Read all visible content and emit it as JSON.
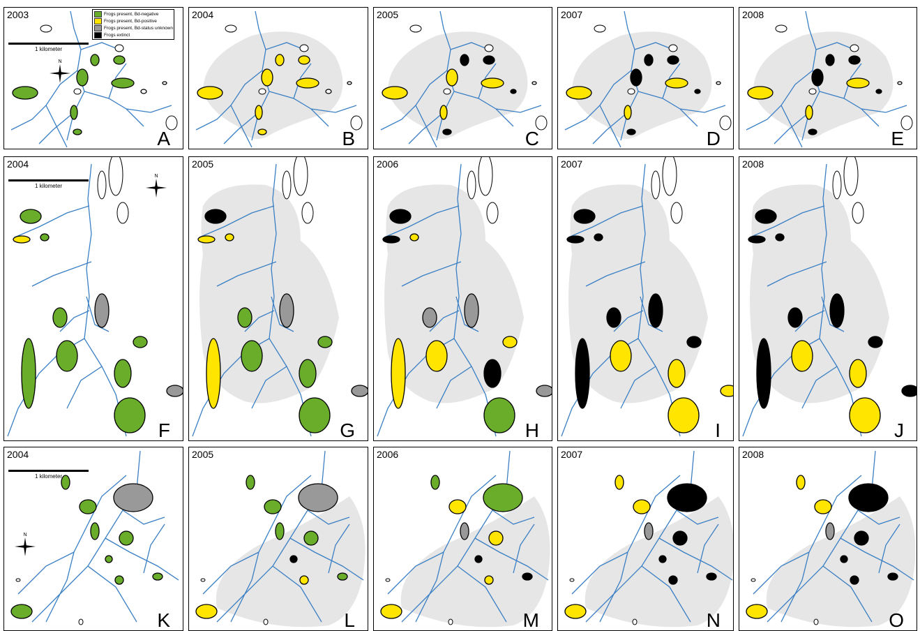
{
  "legend": {
    "items": [
      {
        "label": "Frogs present, Bd-negative",
        "color": "#6aad2a"
      },
      {
        "label": "Frogs present, Bd-positive",
        "color": "#ffe500"
      },
      {
        "label": "Frogs present, Bd-status unknown",
        "color": "#999999"
      },
      {
        "label": "Frogs extinct",
        "color": "#000000"
      }
    ]
  },
  "scale_label": "1 kilometer",
  "compass_label": "N",
  "colors": {
    "stream": "#3a7fc4",
    "range": "#e6e6e6",
    "negative": "#6aad2a",
    "positive": "#ffe500",
    "unknown": "#999999",
    "extinct": "#000000"
  },
  "rows": [
    {
      "basin": "top",
      "panels": [
        {
          "year": "2003",
          "letter": "A"
        },
        {
          "year": "2004",
          "letter": "B"
        },
        {
          "year": "2005",
          "letter": "C"
        },
        {
          "year": "2007",
          "letter": "D"
        },
        {
          "year": "2008",
          "letter": "E"
        }
      ]
    },
    {
      "basin": "middle",
      "panels": [
        {
          "year": "2004",
          "letter": "F"
        },
        {
          "year": "2005",
          "letter": "G"
        },
        {
          "year": "2006",
          "letter": "H"
        },
        {
          "year": "2007",
          "letter": "I"
        },
        {
          "year": "2008",
          "letter": "J"
        }
      ]
    },
    {
      "basin": "bottom",
      "panels": [
        {
          "year": "2004",
          "letter": "K"
        },
        {
          "year": "2005",
          "letter": "L"
        },
        {
          "year": "2006",
          "letter": "M"
        },
        {
          "year": "2007",
          "letter": "N"
        },
        {
          "year": "2008",
          "letter": "O"
        }
      ]
    }
  ],
  "lake_status": {
    "top": [
      [
        "negative",
        "negative",
        "negative",
        "negative",
        "negative",
        "negative",
        "negative",
        "none",
        "none"
      ],
      [
        "positive",
        "positive",
        "positive",
        "positive",
        "positive",
        "positive",
        "positive",
        "none",
        "none"
      ],
      [
        "positive",
        "positive",
        "positive",
        "extinct",
        "extinct",
        "positive",
        "extinct",
        "extinct",
        "none"
      ],
      [
        "positive",
        "extinct",
        "positive",
        "extinct",
        "extinct",
        "positive",
        "extinct",
        "extinct",
        "none"
      ],
      [
        "positive",
        "extinct",
        "positive",
        "extinct",
        "extinct",
        "positive",
        "extinct",
        "extinct",
        "none"
      ]
    ],
    "middle": [
      [
        "negative",
        "positive",
        "negative",
        "negative",
        "unknown",
        "negative",
        "negative",
        "negative",
        "negative",
        "negative",
        "unknown"
      ],
      [
        "extinct",
        "positive",
        "positive",
        "negative",
        "unknown",
        "negative",
        "positive",
        "negative",
        "negative",
        "negative",
        "unknown"
      ],
      [
        "extinct",
        "extinct",
        "positive",
        "unknown",
        "unknown",
        "positive",
        "positive",
        "positive",
        "extinct",
        "negative",
        "unknown"
      ],
      [
        "extinct",
        "extinct",
        "extinct",
        "extinct",
        "extinct",
        "positive",
        "extinct",
        "extinct",
        "positive",
        "positive",
        "positive"
      ],
      [
        "extinct",
        "extinct",
        "extinct",
        "extinct",
        "extinct",
        "positive",
        "extinct",
        "extinct",
        "positive",
        "positive",
        "extinct"
      ]
    ],
    "bottom": [
      [
        "negative",
        "negative",
        "unknown",
        "negative",
        "negative",
        "negative",
        "negative",
        "negative",
        "negative"
      ],
      [
        "negative",
        "negative",
        "unknown",
        "negative",
        "negative",
        "extinct",
        "positive",
        "negative",
        "positive"
      ],
      [
        "negative",
        "positive",
        "negative",
        "unknown",
        "positive",
        "extinct",
        "positive",
        "extinct",
        "positive"
      ],
      [
        "positive",
        "positive",
        "extinct",
        "unknown",
        "extinct",
        "extinct",
        "extinct",
        "extinct",
        "positive"
      ],
      [
        "positive",
        "positive",
        "extinct",
        "unknown",
        "extinct",
        "extinct",
        "extinct",
        "extinct",
        "positive"
      ]
    ]
  },
  "range_shown": [
    [
      false,
      true,
      true,
      true,
      true
    ],
    [
      false,
      true,
      true,
      true,
      true
    ],
    [
      false,
      true,
      true,
      true,
      true
    ]
  ]
}
